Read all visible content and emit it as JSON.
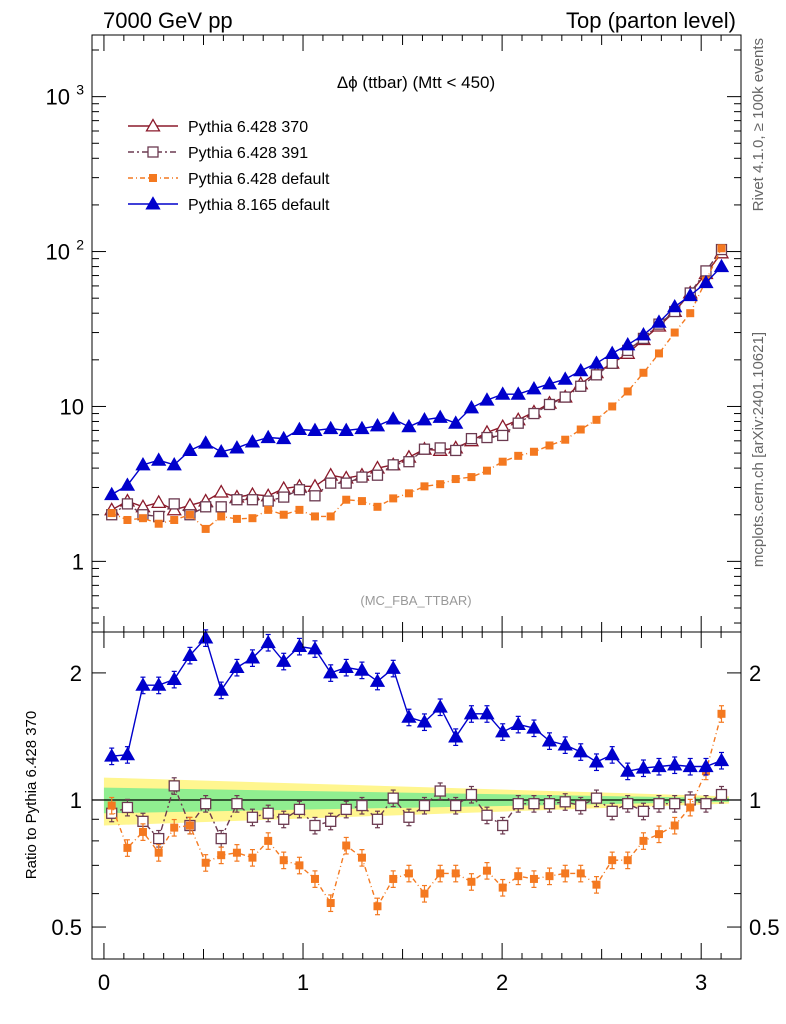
{
  "header": {
    "left_title": "7000 GeV pp",
    "right_title": "Top (parton level)"
  },
  "side_labels": {
    "rivet": "Rivet 4.1.0, ≥ 100k events",
    "mcplots": "mcplots.cern.ch [arXiv:2401.10621]"
  },
  "colors": {
    "pythia6_370": "#8b1a2b",
    "pythia6_391": "#6b3a50",
    "pythia6_default": "#f47920",
    "pythia8_default": "#0000cc",
    "band_yellow": "#fff68f",
    "band_green": "#90ee90"
  },
  "chart_data": [
    {
      "type": "line",
      "panel": "main",
      "title": "Δϕ (ttbar) (Mtt < 450)",
      "annotation": "(MC_FBA_TTBAR)",
      "yscale": "log",
      "ylim": [
        0.35,
        2500
      ],
      "xlim": [
        -0.06,
        3.2
      ],
      "xlabel": "",
      "ylabel": "",
      "y_tick_labels": [
        "1",
        "10",
        "10^2",
        "10^3"
      ],
      "legend": [
        "Pythia 6.428 370",
        "Pythia 6.428 391",
        "Pythia 6.428 default",
        "Pythia 8.165 default"
      ],
      "x": [
        0.039,
        0.118,
        0.196,
        0.275,
        0.353,
        0.432,
        0.511,
        0.589,
        0.668,
        0.746,
        0.825,
        0.903,
        0.982,
        1.06,
        1.139,
        1.217,
        1.296,
        1.374,
        1.453,
        1.532,
        1.61,
        1.689,
        1.767,
        1.846,
        1.924,
        2.003,
        2.081,
        2.16,
        2.238,
        2.317,
        2.395,
        2.474,
        2.553,
        2.631,
        2.71,
        2.788,
        2.867,
        2.945,
        3.024,
        3.102
      ],
      "series": [
        {
          "name": "Pythia 6.428 370",
          "values": [
            2.15,
            2.45,
            2.25,
            2.4,
            2.15,
            2.3,
            2.45,
            2.8,
            2.6,
            2.7,
            2.65,
            2.95,
            3.05,
            3.05,
            3.6,
            3.45,
            3.6,
            4.0,
            4.2,
            4.7,
            5.3,
            5.2,
            5.4,
            6.0,
            6.8,
            7.4,
            8.2,
            9.2,
            10.5,
            11.5,
            14.0,
            16.5,
            19.0,
            22.0,
            27.0,
            33.0,
            41.0,
            54.0,
            72.0,
            98.0
          ]
        },
        {
          "name": "Pythia 6.428 391",
          "values": [
            2.0,
            2.35,
            2.0,
            1.95,
            2.35,
            2.0,
            2.25,
            2.25,
            2.5,
            2.5,
            2.45,
            2.6,
            2.9,
            2.65,
            3.2,
            3.2,
            3.5,
            3.6,
            4.2,
            4.4,
            5.3,
            5.4,
            5.2,
            6.2,
            6.3,
            6.5,
            7.8,
            9.0,
            10.3,
            11.5,
            13.5,
            16.0,
            19.0,
            23.0,
            27.5,
            34.0,
            41.0,
            54.0,
            75.0,
            103.0
          ]
        },
        {
          "name": "Pythia 6.428 default",
          "values": [
            2.05,
            1.85,
            1.9,
            1.75,
            1.85,
            2.0,
            1.62,
            1.95,
            1.88,
            1.9,
            2.15,
            2.0,
            2.15,
            1.95,
            1.95,
            2.5,
            2.45,
            2.25,
            2.55,
            2.75,
            3.05,
            3.15,
            3.4,
            3.5,
            3.85,
            4.4,
            4.8,
            5.1,
            5.6,
            6.1,
            7.1,
            8.2,
            10.0,
            12.5,
            16.5,
            22.0,
            30.0,
            40.0,
            65.0,
            105.0
          ]
        },
        {
          "name": "Pythia 8.165 default",
          "values": [
            2.7,
            3.1,
            4.2,
            4.5,
            4.2,
            5.2,
            5.8,
            5.1,
            5.4,
            5.9,
            6.3,
            6.2,
            7.1,
            7.0,
            7.2,
            7.0,
            7.2,
            7.5,
            8.3,
            7.4,
            8.2,
            8.5,
            7.8,
            9.8,
            11.0,
            12.0,
            12.0,
            13.0,
            14.0,
            15.0,
            17.0,
            19.0,
            22.0,
            25.0,
            29.0,
            35.0,
            44.0,
            52.0,
            63.0,
            80.0
          ]
        }
      ]
    },
    {
      "type": "line",
      "panel": "ratio",
      "title": "",
      "ylabel": "Ratio to Pythia 6.428 370",
      "yscale": "log",
      "ylim": [
        0.42,
        2.5
      ],
      "xlim": [
        -0.06,
        3.2
      ],
      "x_tick_labels": [
        "0",
        "1",
        "2",
        "3"
      ],
      "y_tick_labels": [
        "0.5",
        "1",
        "2"
      ],
      "reference_band": {
        "yellow_half_width_start": 0.13,
        "yellow_half_width_end": 0.02,
        "green_half_width_start": 0.07,
        "green_half_width_end": 0.01
      },
      "x": [
        0.039,
        0.118,
        0.196,
        0.275,
        0.353,
        0.432,
        0.511,
        0.589,
        0.668,
        0.746,
        0.825,
        0.903,
        0.982,
        1.06,
        1.139,
        1.217,
        1.296,
        1.374,
        1.453,
        1.532,
        1.61,
        1.689,
        1.767,
        1.846,
        1.924,
        2.003,
        2.081,
        2.16,
        2.238,
        2.317,
        2.395,
        2.474,
        2.553,
        2.631,
        2.71,
        2.788,
        2.867,
        2.945,
        3.024,
        3.102
      ],
      "series": [
        {
          "name": "Pythia 6.428 391",
          "values": [
            0.93,
            0.96,
            0.89,
            0.81,
            1.08,
            0.87,
            0.98,
            0.81,
            0.98,
            0.91,
            0.93,
            0.9,
            0.95,
            0.87,
            0.89,
            0.95,
            0.97,
            0.9,
            1.01,
            0.91,
            0.97,
            1.05,
            0.97,
            1.03,
            0.92,
            0.87,
            0.98,
            0.98,
            0.98,
            0.99,
            0.97,
            1.01,
            0.94,
            0.98,
            0.94,
            0.98,
            0.98,
            1.0,
            0.98,
            1.03
          ]
        },
        {
          "name": "Pythia 6.428 default",
          "values": [
            0.97,
            0.77,
            0.84,
            0.75,
            0.86,
            0.87,
            0.71,
            0.74,
            0.75,
            0.73,
            0.8,
            0.72,
            0.7,
            0.65,
            0.57,
            0.78,
            0.73,
            0.56,
            0.65,
            0.67,
            0.6,
            0.67,
            0.67,
            0.64,
            0.68,
            0.62,
            0.66,
            0.65,
            0.66,
            0.67,
            0.67,
            0.63,
            0.72,
            0.72,
            0.8,
            0.83,
            0.87,
            0.96,
            1.17,
            1.6
          ]
        },
        {
          "name": "Pythia 8.165 default",
          "values": [
            1.27,
            1.28,
            1.87,
            1.87,
            1.93,
            2.2,
            2.42,
            1.82,
            2.06,
            2.17,
            2.36,
            2.13,
            2.31,
            2.28,
            2.0,
            2.06,
            2.03,
            1.91,
            2.05,
            1.57,
            1.53,
            1.66,
            1.41,
            1.6,
            1.6,
            1.45,
            1.51,
            1.48,
            1.38,
            1.35,
            1.3,
            1.23,
            1.28,
            1.17,
            1.19,
            1.2,
            1.21,
            1.2,
            1.2,
            1.24
          ]
        }
      ]
    }
  ]
}
